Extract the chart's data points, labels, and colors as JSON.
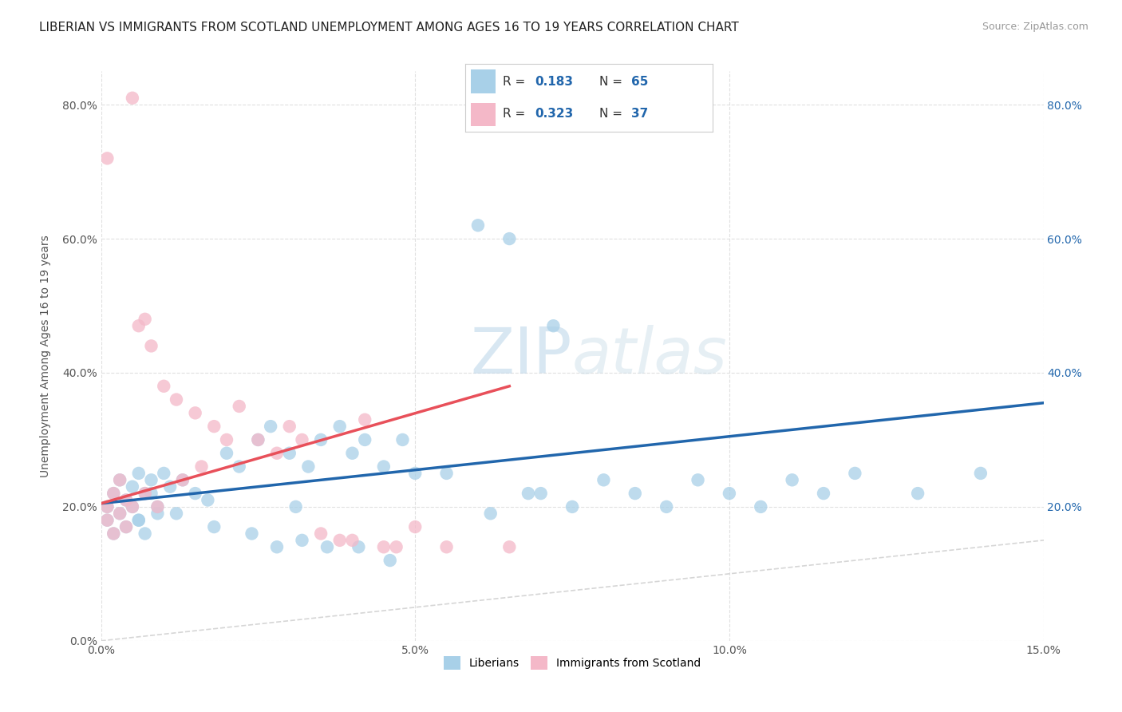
{
  "title": "LIBERIAN VS IMMIGRANTS FROM SCOTLAND UNEMPLOYMENT AMONG AGES 16 TO 19 YEARS CORRELATION CHART",
  "source": "Source: ZipAtlas.com",
  "ylabel": "Unemployment Among Ages 16 to 19 years",
  "xlim": [
    0.0,
    0.15
  ],
  "ylim": [
    0.0,
    0.85
  ],
  "xticks": [
    0.0,
    0.05,
    0.1,
    0.15
  ],
  "xticklabels": [
    "0.0%",
    "5.0%",
    "10.0%",
    "15.0%"
  ],
  "yticks": [
    0.0,
    0.2,
    0.4,
    0.6,
    0.8
  ],
  "yticklabels": [
    "0.0%",
    "20.0%",
    "40.0%",
    "60.0%",
    "80.0%"
  ],
  "right_yticks": [
    0.2,
    0.4,
    0.6,
    0.8
  ],
  "right_yticklabels": [
    "20.0%",
    "40.0%",
    "60.0%",
    "80.0%"
  ],
  "blue_R": "0.183",
  "blue_N": "65",
  "pink_R": "0.323",
  "pink_N": "37",
  "blue_color": "#a8d0e8",
  "pink_color": "#f4b8c8",
  "blue_line_color": "#2166ac",
  "pink_line_color": "#e8505a",
  "legend_label_1": "Liberians",
  "legend_label_2": "Immigrants from Scotland",
  "blue_trend_x0": 0.0,
  "blue_trend_y0": 0.205,
  "blue_trend_x1": 0.15,
  "blue_trend_y1": 0.355,
  "pink_trend_x0": 0.0,
  "pink_trend_y0": 0.205,
  "pink_trend_x1": 0.065,
  "pink_trend_y1": 0.38,
  "background_color": "#ffffff",
  "grid_color": "#dddddd",
  "watermark_text": "ZIPatlas",
  "watermark_color": "#d8e8f0",
  "blue_scatter_x": [
    0.001,
    0.002,
    0.001,
    0.003,
    0.002,
    0.004,
    0.003,
    0.005,
    0.004,
    0.006,
    0.005,
    0.007,
    0.006,
    0.008,
    0.007,
    0.009,
    0.008,
    0.01,
    0.009,
    0.011,
    0.013,
    0.015,
    0.017,
    0.02,
    0.022,
    0.025,
    0.027,
    0.03,
    0.033,
    0.035,
    0.038,
    0.04,
    0.042,
    0.045,
    0.048,
    0.05,
    0.055,
    0.06,
    0.065,
    0.07,
    0.075,
    0.08,
    0.085,
    0.09,
    0.095,
    0.1,
    0.105,
    0.11,
    0.115,
    0.12,
    0.13,
    0.14,
    0.006,
    0.012,
    0.018,
    0.024,
    0.031,
    0.028,
    0.032,
    0.036,
    0.041,
    0.046,
    0.062,
    0.068,
    0.072
  ],
  "blue_scatter_y": [
    0.2,
    0.22,
    0.18,
    0.24,
    0.16,
    0.21,
    0.19,
    0.23,
    0.17,
    0.25,
    0.2,
    0.22,
    0.18,
    0.24,
    0.16,
    0.2,
    0.22,
    0.25,
    0.19,
    0.23,
    0.24,
    0.22,
    0.21,
    0.28,
    0.26,
    0.3,
    0.32,
    0.28,
    0.26,
    0.3,
    0.32,
    0.28,
    0.3,
    0.26,
    0.3,
    0.25,
    0.25,
    0.62,
    0.6,
    0.22,
    0.2,
    0.24,
    0.22,
    0.2,
    0.24,
    0.22,
    0.2,
    0.24,
    0.22,
    0.25,
    0.22,
    0.25,
    0.18,
    0.19,
    0.17,
    0.16,
    0.2,
    0.14,
    0.15,
    0.14,
    0.14,
    0.12,
    0.19,
    0.22,
    0.47
  ],
  "pink_scatter_x": [
    0.001,
    0.002,
    0.001,
    0.003,
    0.002,
    0.004,
    0.003,
    0.005,
    0.004,
    0.006,
    0.005,
    0.007,
    0.008,
    0.01,
    0.012,
    0.015,
    0.018,
    0.02,
    0.022,
    0.025,
    0.028,
    0.03,
    0.032,
    0.035,
    0.038,
    0.04,
    0.045,
    0.05,
    0.055,
    0.065,
    0.007,
    0.009,
    0.013,
    0.016,
    0.042,
    0.047,
    0.001
  ],
  "pink_scatter_y": [
    0.2,
    0.22,
    0.18,
    0.24,
    0.16,
    0.21,
    0.19,
    0.81,
    0.17,
    0.47,
    0.2,
    0.48,
    0.44,
    0.38,
    0.36,
    0.34,
    0.32,
    0.3,
    0.35,
    0.3,
    0.28,
    0.32,
    0.3,
    0.16,
    0.15,
    0.15,
    0.14,
    0.17,
    0.14,
    0.14,
    0.22,
    0.2,
    0.24,
    0.26,
    0.33,
    0.14,
    0.72
  ]
}
